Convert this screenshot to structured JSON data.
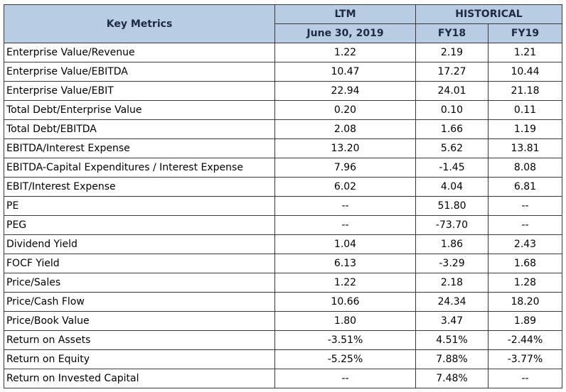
{
  "header": {
    "key_metrics": "Key Metrics",
    "ltm": "LTM",
    "historical": "HISTORICAL",
    "ltm_date": "June 30, 2019",
    "fy18": "FY18",
    "fy19": "FY19"
  },
  "rows": [
    {
      "label": "Enterprise Value/Revenue",
      "ltm": "1.22",
      "fy18": "2.19",
      "fy19": "1.21"
    },
    {
      "label": "Enterprise Value/EBITDA",
      "ltm": "10.47",
      "fy18": "17.27",
      "fy19": "10.44"
    },
    {
      "label": "Enterprise Value/EBIT",
      "ltm": "22.94",
      "fy18": "24.01",
      "fy19": "21.18"
    },
    {
      "label": "Total Debt/Enterprise Value",
      "ltm": "0.20",
      "fy18": "0.10",
      "fy19": "0.11"
    },
    {
      "label": "Total Debt/EBITDA",
      "ltm": "2.08",
      "fy18": "1.66",
      "fy19": "1.19"
    },
    {
      "label": "EBITDA/Interest Expense",
      "ltm": "13.20",
      "fy18": "5.62",
      "fy19": "13.81"
    },
    {
      "label": "EBITDA-Capital Expenditures / Interest Expense",
      "ltm": "7.96",
      "fy18": "-1.45",
      "fy19": "8.08"
    },
    {
      "label": "EBIT/Interest Expense",
      "ltm": "6.02",
      "fy18": "4.04",
      "fy19": "6.81"
    },
    {
      "label": "PE",
      "ltm": "--",
      "fy18": "51.80",
      "fy19": "--"
    },
    {
      "label": "PEG",
      "ltm": "--",
      "fy18": "-73.70",
      "fy19": "--"
    },
    {
      "label": "Dividend Yield",
      "ltm": "1.04",
      "fy18": "1.86",
      "fy19": "2.43"
    },
    {
      "label": "FOCF Yield",
      "ltm": "6.13",
      "fy18": "-3.29",
      "fy19": "1.68"
    },
    {
      "label": "Price/Sales",
      "ltm": "1.22",
      "fy18": "2.18",
      "fy19": "1.28"
    },
    {
      "label": "Price/Cash Flow",
      "ltm": "10.66",
      "fy18": "24.34",
      "fy19": "18.20"
    },
    {
      "label": "Price/Book Value",
      "ltm": "1.80",
      "fy18": "3.47",
      "fy19": "1.89"
    },
    {
      "label": "Return on Assets",
      "ltm": "-3.51%",
      "fy18": "4.51%",
      "fy19": "-2.44%"
    },
    {
      "label": "Return on Equity",
      "ltm": "-5.25%",
      "fy18": "7.88%",
      "fy19": "-3.77%"
    },
    {
      "label": "Return on Invested Capital",
      "ltm": "--",
      "fy18": "7.48%",
      "fy19": "--"
    }
  ],
  "colors": {
    "header_bg": "#b8cce4",
    "border": "#3a3a3a"
  }
}
